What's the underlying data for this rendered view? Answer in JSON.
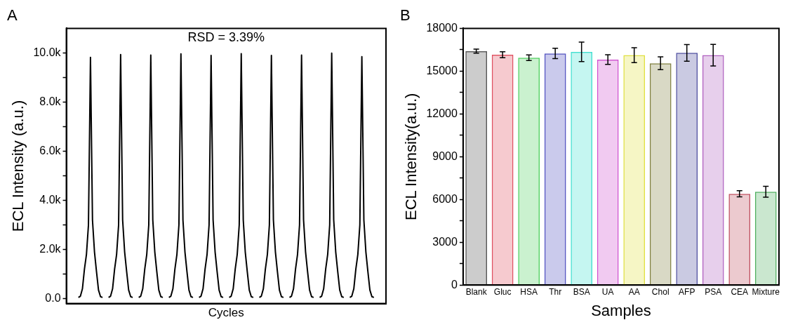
{
  "chart_data": [
    {
      "type": "line",
      "title": "A",
      "ylabel": "ECL Intensity (a.u.)",
      "xlabel": "Cycles",
      "annotations": [
        "RSD = 3.39%"
      ],
      "tick_labels": "y",
      "grid": false,
      "legend": false,
      "marker": "none",
      "line_style": "solid",
      "categories": [
        null,
        null,
        null,
        null,
        null,
        null,
        null,
        null,
        null,
        null,
        null,
        null,
        null,
        null,
        null,
        null,
        null,
        null,
        null,
        null,
        null,
        null,
        null,
        null,
        null,
        null,
        null,
        null,
        null,
        null,
        null,
        null,
        null,
        null,
        null,
        null,
        null,
        null,
        null,
        null,
        null,
        null,
        null,
        null,
        null,
        null,
        null,
        null,
        null,
        null,
        null,
        null,
        null,
        null,
        null,
        null,
        null,
        null,
        null,
        null,
        null,
        null,
        null,
        null,
        null,
        null,
        null,
        null,
        null,
        null,
        null,
        null,
        null,
        null,
        null,
        null,
        null,
        null,
        null,
        null,
        null,
        null,
        null,
        null,
        null,
        null,
        null,
        null,
        null,
        null,
        null,
        null,
        null,
        null,
        null,
        null,
        null,
        null,
        null,
        null,
        null,
        null,
        null,
        null,
        null,
        null,
        null,
        null,
        null,
        null,
        null,
        null,
        null,
        null,
        null,
        null,
        null,
        null,
        null,
        null,
        null,
        null,
        null,
        null,
        null,
        null,
        null,
        null,
        null,
        null,
        null,
        null,
        null,
        null,
        null,
        null,
        null,
        null,
        null,
        null,
        null,
        null,
        null,
        null,
        null,
        null,
        null,
        null,
        null,
        null,
        null,
        null,
        null,
        null,
        null,
        null,
        null,
        null,
        null,
        null
      ],
      "series": [
        {
          "color": "#000000",
          "values": [
            null,
            null,
            null,
            null,
            null,
            null,
            50,
            100,
            400,
            1200,
            1800,
            3000,
            9820,
            3200,
            1900,
            1100,
            350,
            80,
            50,
            null,
            null,
            50,
            100,
            400,
            1200,
            1800,
            3000,
            9930,
            3200,
            1900,
            1100,
            350,
            80,
            50,
            null,
            null,
            50,
            100,
            400,
            1200,
            1800,
            3000,
            9910,
            3200,
            1900,
            1100,
            350,
            80,
            50,
            null,
            null,
            50,
            100,
            400,
            1200,
            1800,
            3000,
            9960,
            3200,
            1900,
            1100,
            350,
            80,
            50,
            null,
            null,
            50,
            100,
            400,
            1200,
            1800,
            3000,
            9900,
            3200,
            1900,
            1100,
            350,
            80,
            50,
            null,
            null,
            50,
            100,
            400,
            1200,
            1800,
            3000,
            9970,
            3200,
            1900,
            1100,
            350,
            80,
            50,
            null,
            null,
            50,
            100,
            400,
            1200,
            1800,
            3000,
            9900,
            3200,
            1900,
            1100,
            350,
            80,
            50,
            null,
            null,
            50,
            100,
            400,
            1200,
            1800,
            3000,
            9910,
            3200,
            1900,
            1100,
            350,
            80,
            50,
            null,
            null,
            50,
            100,
            400,
            1200,
            1800,
            3000,
            9990,
            3200,
            1900,
            1100,
            350,
            80,
            50,
            null,
            null,
            50,
            100,
            400,
            1200,
            1800,
            3000,
            9850,
            3200,
            1900,
            1100,
            350,
            80,
            50,
            null,
            null,
            null,
            null,
            null,
            null
          ]
        }
      ],
      "ylim": [
        -200,
        11000
      ],
      "yticks": [
        {
          "value": 0,
          "label": "0.0"
        },
        {
          "value": 1000,
          "label": null
        },
        {
          "value": 2000,
          "label": "2.0k"
        },
        {
          "value": 3000,
          "label": null
        },
        {
          "value": 4000,
          "label": "4.0k"
        },
        {
          "value": 5000,
          "label": null
        },
        {
          "value": 6000,
          "label": "6.0k"
        },
        {
          "value": 7000,
          "label": null
        },
        {
          "value": 8000,
          "label": "8.0k"
        },
        {
          "value": 9000,
          "label": null
        },
        {
          "value": 10000,
          "label": "10.0k"
        }
      ]
    },
    {
      "type": "bar",
      "title": "B",
      "ylabel": "ECL Intensity(a.u.)",
      "xlabel": "Samples",
      "grid": false,
      "legend": false,
      "categories": [
        "Blank",
        "Gluc",
        "HSA",
        "Thr",
        "BSA",
        "UA",
        "AA",
        "Chol",
        "AFP",
        "PSA",
        "CEA",
        "Mixture"
      ],
      "values": [
        16400,
        16150,
        15940,
        16240,
        16350,
        15810,
        16120,
        15550,
        16280,
        16120,
        6400,
        6540
      ],
      "errors": [
        140,
        210,
        200,
        360,
        680,
        340,
        520,
        450,
        580,
        760,
        220,
        380
      ],
      "colors": [
        "#555555",
        "#e05060",
        "#50d060",
        "#5050c0",
        "#40e0d0",
        "#d050d0",
        "#e0e040",
        "#808040",
        "#5050a0",
        "#b060c0",
        "#c05060",
        "#50b060"
      ],
      "ylim": [
        0,
        18000
      ],
      "yticks": [
        0,
        {
          "value": 1500,
          "label": null
        },
        3000,
        {
          "value": 4500,
          "label": null
        },
        6000,
        {
          "value": 7500,
          "label": null
        },
        9000,
        {
          "value": 10500,
          "label": null
        },
        12000,
        {
          "value": 13500,
          "label": null
        },
        15000,
        {
          "value": 16500,
          "label": null
        },
        18000
      ]
    }
  ]
}
